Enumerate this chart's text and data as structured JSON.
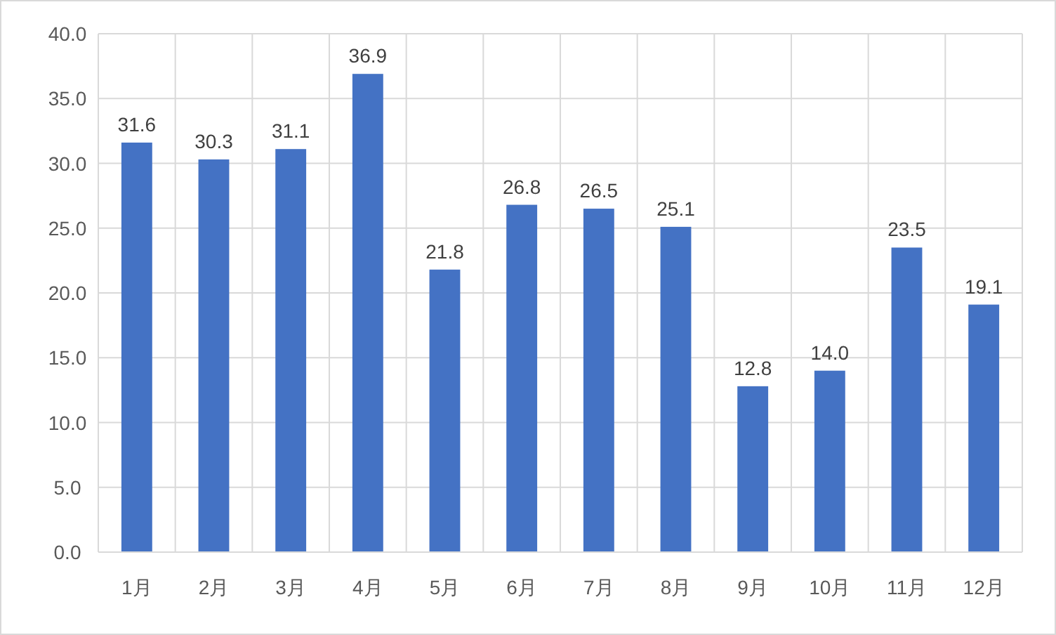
{
  "chart_data": {
    "type": "bar",
    "categories": [
      "1月",
      "2月",
      "3月",
      "4月",
      "5月",
      "6月",
      "7月",
      "8月",
      "9月",
      "10月",
      "11月",
      "12月"
    ],
    "values": [
      31.6,
      30.3,
      31.1,
      36.9,
      21.8,
      26.8,
      26.5,
      25.1,
      12.8,
      14.0,
      23.5,
      19.1
    ],
    "value_labels": [
      "31.6",
      "30.3",
      "31.1",
      "36.9",
      "21.8",
      "26.8",
      "26.5",
      "25.1",
      "12.8",
      "14.0",
      "23.5",
      "19.1"
    ],
    "color": "#4472c4",
    "ylim": [
      0,
      40
    ],
    "yticks": [
      {
        "value": 0,
        "label": "0.0"
      },
      {
        "value": 5,
        "label": "5.0"
      },
      {
        "value": 10,
        "label": "10.0"
      },
      {
        "value": 15,
        "label": "15.0"
      },
      {
        "value": 20,
        "label": "20.0"
      },
      {
        "value": 25,
        "label": "25.0"
      },
      {
        "value": 30,
        "label": "30.0"
      },
      {
        "value": 35,
        "label": "35.0"
      },
      {
        "value": 40,
        "label": "40.0"
      }
    ],
    "grid": true
  }
}
